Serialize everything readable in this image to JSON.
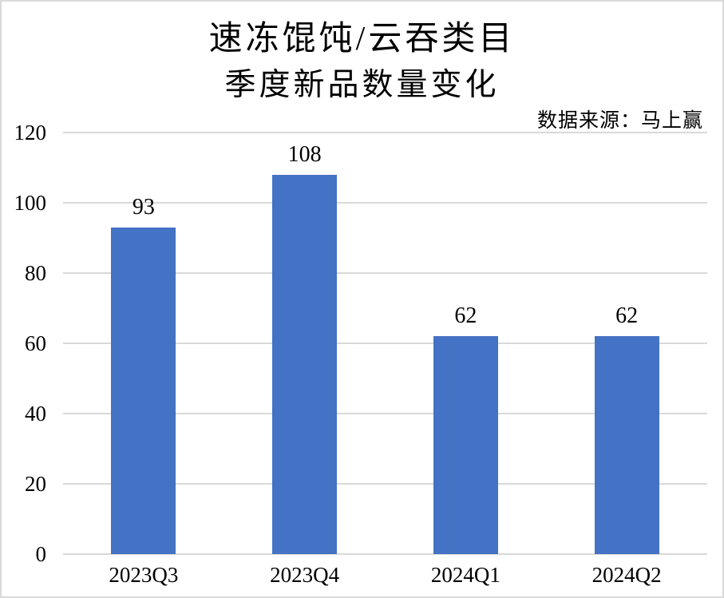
{
  "title": {
    "line1": "速冻馄饨/云吞类目",
    "line2": "季度新品数量变化"
  },
  "source_note": "数据来源：马上赢",
  "colors": {
    "bar": "#4472C4",
    "gridline": "#d9d9d9",
    "text": "#000000",
    "page_border": "#d9d9d9",
    "background": "#ffffff"
  },
  "chart_data": {
    "type": "bar",
    "title": "速冻馄饨/云吞类目 季度新品数量变化",
    "source": "数据来源：马上赢",
    "categories": [
      "2023Q3",
      "2023Q4",
      "2024Q1",
      "2024Q2"
    ],
    "values": [
      93,
      108,
      62,
      62
    ],
    "data_labels": [
      "93",
      "108",
      "62",
      "62"
    ],
    "xlabel": "",
    "ylabel": "",
    "ylim": [
      0,
      120
    ],
    "yticks": [
      0,
      20,
      40,
      60,
      80,
      100,
      120
    ],
    "grid": true,
    "legend_position": "none",
    "bar_color": "#4472C4"
  }
}
